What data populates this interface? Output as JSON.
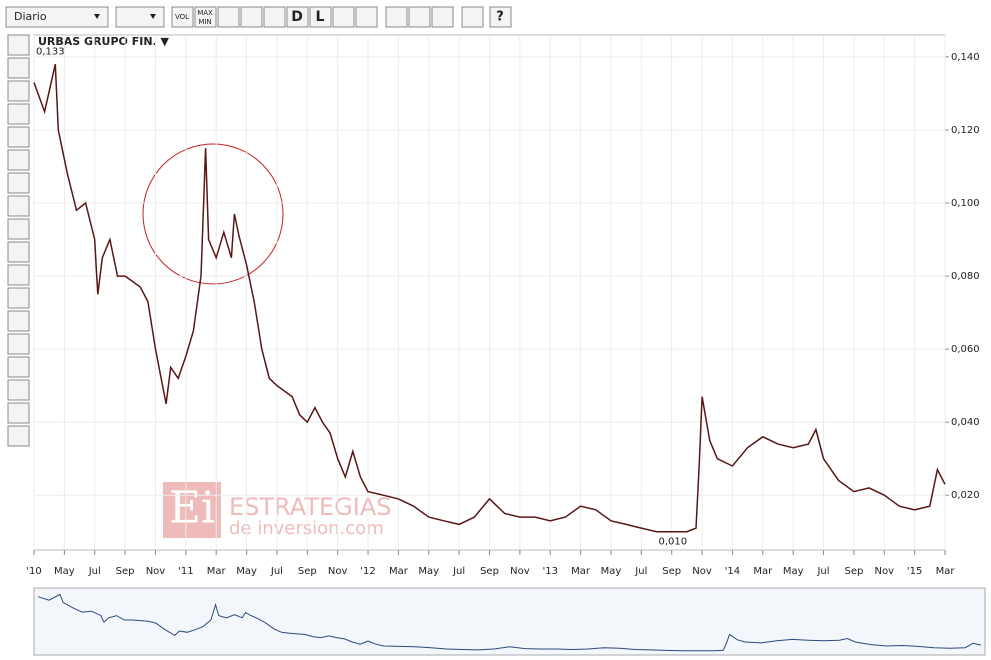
{
  "toolbar": {
    "period": "Diario",
    "vol": "VOL",
    "max": "MAX",
    "min": "MIN",
    "d": "D",
    "l": "L",
    "help": "?"
  },
  "watermark": {
    "logo": "Ei",
    "line1": "ESTRATEGIAS",
    "line2": "de inversion.com"
  },
  "chart_data": {
    "type": "line",
    "title": "URBAS GRUPO FIN. ▼",
    "color": "#5a1616",
    "navigator_color": "#2b4a7a",
    "x": [
      0,
      0.7,
      1.4,
      1.6,
      2.2,
      2.8,
      3.4,
      4,
      4.1,
      4.2,
      4.5,
      5,
      5.5,
      6,
      7,
      7.5,
      8,
      8.7,
      9,
      9.5,
      10,
      10.5,
      11,
      11.3,
      11.5,
      12,
      12.5,
      13,
      13.2,
      13.5,
      14,
      14.5,
      15,
      15.5,
      16,
      17,
      17.5,
      18,
      18.5,
      19,
      19.5,
      20,
      20.5,
      21,
      21.5,
      22,
      23,
      24,
      25,
      26,
      27,
      28,
      29,
      30,
      31,
      32,
      33,
      34,
      35,
      36,
      37,
      38,
      39,
      40,
      41,
      42,
      43,
      43.6,
      43.8,
      44,
      44.5,
      45,
      46,
      47,
      48,
      49,
      50,
      51,
      51.5,
      52,
      53,
      54,
      55,
      56,
      57,
      58,
      59,
      59.5,
      60
    ],
    "values": [
      0.133,
      0.125,
      0.138,
      0.12,
      0.108,
      0.098,
      0.1,
      0.09,
      0.082,
      0.075,
      0.085,
      0.09,
      0.08,
      0.08,
      0.077,
      0.073,
      0.06,
      0.045,
      0.055,
      0.052,
      0.058,
      0.065,
      0.08,
      0.115,
      0.09,
      0.085,
      0.092,
      0.085,
      0.097,
      0.091,
      0.083,
      0.073,
      0.06,
      0.052,
      0.05,
      0.047,
      0.042,
      0.04,
      0.044,
      0.04,
      0.037,
      0.03,
      0.025,
      0.032,
      0.025,
      0.021,
      0.02,
      0.019,
      0.017,
      0.014,
      0.013,
      0.012,
      0.014,
      0.019,
      0.015,
      0.014,
      0.014,
      0.013,
      0.014,
      0.017,
      0.016,
      0.013,
      0.012,
      0.011,
      0.01,
      0.01,
      0.01,
      0.011,
      0.027,
      0.047,
      0.035,
      0.03,
      0.028,
      0.033,
      0.036,
      0.034,
      0.033,
      0.034,
      0.038,
      0.03,
      0.024,
      0.021,
      0.022,
      0.02,
      0.017,
      0.016,
      0.017,
      0.027,
      0.023
    ],
    "xlim": [
      0,
      60
    ],
    "ylim": [
      0.005,
      0.146
    ],
    "xticks": [
      {
        "value": 0,
        "label": "'10"
      },
      {
        "value": 2,
        "label": "May"
      },
      {
        "value": 4,
        "label": "Jul"
      },
      {
        "value": 6,
        "label": "Sep"
      },
      {
        "value": 8,
        "label": "Nov"
      },
      {
        "value": 10,
        "label": "'11"
      },
      {
        "value": 12,
        "label": "Mar"
      },
      {
        "value": 14,
        "label": "May"
      },
      {
        "value": 16,
        "label": "Jul"
      },
      {
        "value": 18,
        "label": "Sep"
      },
      {
        "value": 20,
        "label": "Nov"
      },
      {
        "value": 22,
        "label": "'12"
      },
      {
        "value": 24,
        "label": "Mar"
      },
      {
        "value": 26,
        "label": "May"
      },
      {
        "value": 28,
        "label": "Jul"
      },
      {
        "value": 30,
        "label": "Sep"
      },
      {
        "value": 32,
        "label": "Nov"
      },
      {
        "value": 34,
        "label": "'13"
      },
      {
        "value": 36,
        "label": "Mar"
      },
      {
        "value": 38,
        "label": "May"
      },
      {
        "value": 40,
        "label": "Jul"
      },
      {
        "value": 42,
        "label": "Sep"
      },
      {
        "value": 44,
        "label": "Nov"
      },
      {
        "value": 46,
        "label": "'14"
      },
      {
        "value": 48,
        "label": "Mar"
      },
      {
        "value": 50,
        "label": "May"
      },
      {
        "value": 52,
        "label": "Jul"
      },
      {
        "value": 54,
        "label": "Sep"
      },
      {
        "value": 56,
        "label": "Nov"
      },
      {
        "value": 58,
        "label": "'15"
      },
      {
        "value": 60,
        "label": "Mar"
      }
    ],
    "yticks": [
      {
        "value": 0.02,
        "label": "0,020"
      },
      {
        "value": 0.04,
        "label": "0,040"
      },
      {
        "value": 0.06,
        "label": "0,060"
      },
      {
        "value": 0.08,
        "label": "0,080"
      },
      {
        "value": 0.1,
        "label": "0,100"
      },
      {
        "value": 0.12,
        "label": "0,120"
      },
      {
        "value": 0.14,
        "label": "0,140"
      }
    ],
    "grid": true,
    "annotations": [
      {
        "x": 0,
        "value": 0.133,
        "label": "0,133"
      },
      {
        "x": 41,
        "value": 0.01,
        "label": "0,010"
      }
    ]
  }
}
